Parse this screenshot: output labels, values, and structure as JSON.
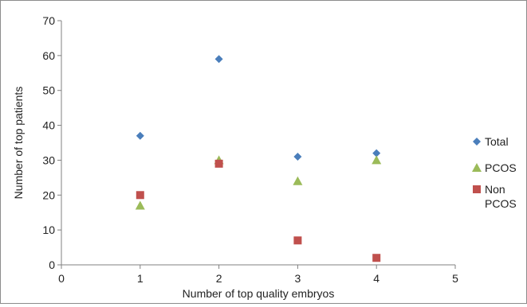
{
  "chart_data": {
    "type": "scatter",
    "title": "",
    "xlabel": "Number of top quality embryos",
    "ylabel": "Number of top patients",
    "xlim": [
      0,
      5
    ],
    "ylim": [
      0,
      70
    ],
    "x_ticks": [
      "0",
      "1",
      "2",
      "3",
      "4",
      "5"
    ],
    "y_ticks": [
      "0",
      "10",
      "20",
      "30",
      "40",
      "50",
      "60",
      "70"
    ],
    "grid": false,
    "legend_position": "right",
    "series": [
      {
        "name": "Total",
        "marker": "diamond",
        "color": "#4a7ebb",
        "points": [
          {
            "x": 1,
            "y": 37
          },
          {
            "x": 2,
            "y": 59
          },
          {
            "x": 3,
            "y": 31
          },
          {
            "x": 4,
            "y": 32
          }
        ]
      },
      {
        "name": "PCOS",
        "marker": "triangle",
        "color": "#9bbb59",
        "points": [
          {
            "x": 1,
            "y": 17
          },
          {
            "x": 2,
            "y": 30
          },
          {
            "x": 3,
            "y": 24
          },
          {
            "x": 4,
            "y": 30
          }
        ]
      },
      {
        "name": "Non PCOS",
        "name_lines": [
          "Non",
          "PCOS"
        ],
        "marker": "square",
        "color": "#c0504d",
        "points": [
          {
            "x": 1,
            "y": 20
          },
          {
            "x": 2,
            "y": 29
          },
          {
            "x": 3,
            "y": 7
          },
          {
            "x": 4,
            "y": 2
          }
        ]
      }
    ]
  }
}
